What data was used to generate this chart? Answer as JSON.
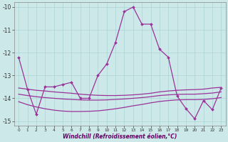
{
  "x": [
    0,
    1,
    2,
    3,
    4,
    5,
    6,
    7,
    8,
    9,
    10,
    11,
    12,
    13,
    14,
    15,
    16,
    17,
    18,
    19,
    20,
    21,
    22,
    23
  ],
  "main_y": [
    -12.2,
    -13.6,
    -14.7,
    -13.5,
    -13.5,
    -13.4,
    -13.3,
    -14.0,
    -14.0,
    -13.0,
    -12.5,
    -11.55,
    -10.2,
    -10.0,
    -10.75,
    -10.75,
    -11.85,
    -12.2,
    -13.9,
    -14.45,
    -14.9,
    -14.1,
    -14.5,
    -13.55
  ],
  "smooth1_y": [
    -13.55,
    -13.6,
    -13.65,
    -13.68,
    -13.72,
    -13.75,
    -13.78,
    -13.82,
    -13.85,
    -13.87,
    -13.88,
    -13.88,
    -13.87,
    -13.85,
    -13.82,
    -13.78,
    -13.72,
    -13.68,
    -13.65,
    -13.63,
    -13.62,
    -13.6,
    -13.55,
    -13.52
  ],
  "smooth2_y": [
    -13.82,
    -13.88,
    -13.93,
    -13.97,
    -14.0,
    -14.03,
    -14.05,
    -14.07,
    -14.08,
    -14.08,
    -14.07,
    -14.05,
    -14.03,
    -14.0,
    -13.97,
    -13.93,
    -13.88,
    -13.85,
    -13.83,
    -13.82,
    -13.82,
    -13.8,
    -13.77,
    -13.72
  ],
  "smooth3_y": [
    -14.15,
    -14.28,
    -14.38,
    -14.46,
    -14.52,
    -14.56,
    -14.58,
    -14.58,
    -14.57,
    -14.55,
    -14.51,
    -14.46,
    -14.4,
    -14.33,
    -14.27,
    -14.2,
    -14.14,
    -14.1,
    -14.07,
    -14.06,
    -14.06,
    -14.05,
    -14.02,
    -13.97
  ],
  "ylim": [
    -15.2,
    -9.8
  ],
  "xlim": [
    -0.5,
    23.5
  ],
  "yticks": [
    -15,
    -14,
    -13,
    -12,
    -11,
    -10
  ],
  "xticks": [
    0,
    1,
    2,
    3,
    4,
    5,
    6,
    7,
    8,
    9,
    10,
    11,
    12,
    13,
    14,
    15,
    16,
    17,
    18,
    19,
    20,
    21,
    22,
    23
  ],
  "xlabel": "Windchill (Refroidissement éolien,°C)",
  "bg_color": "#cce8e8",
  "grid_color": "#aad4d4",
  "line_color": "#993399"
}
